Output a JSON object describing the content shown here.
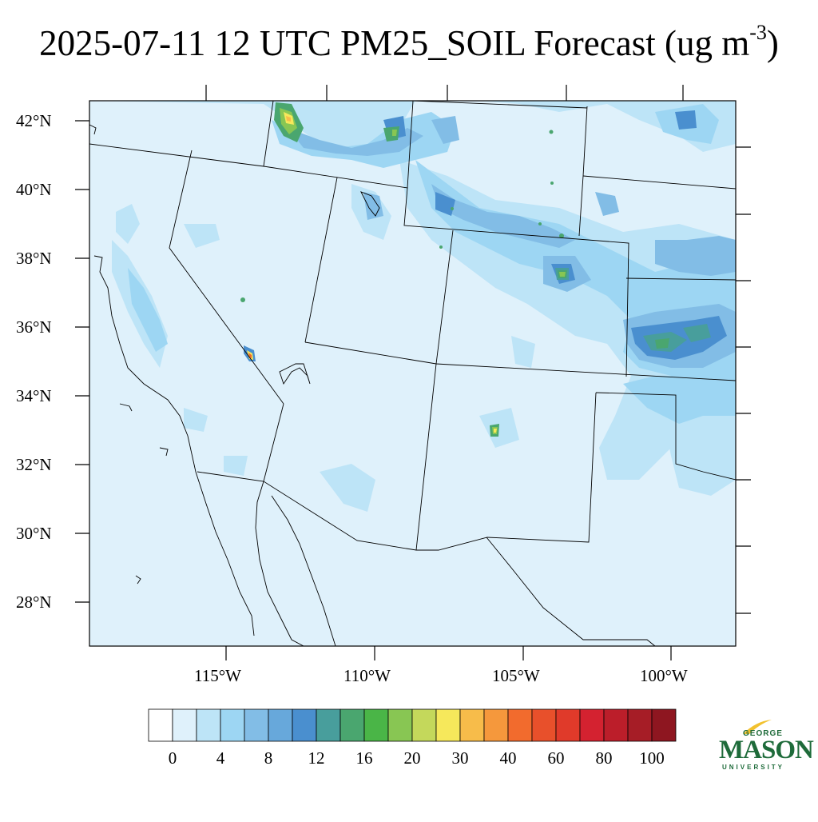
{
  "title": {
    "main": "2025-07-11 12 UTC PM25_SOIL Forecast (ug m",
    "superscript": "-3",
    "close": ")"
  },
  "map": {
    "lat_labels": [
      "42°N",
      "40°N",
      "38°N",
      "36°N",
      "34°N",
      "32°N",
      "30°N",
      "28°N"
    ],
    "lon_labels": [
      "115°W",
      "110°W",
      "105°W",
      "100°W"
    ],
    "background_color": "#dff1fb",
    "hotspots": [
      {
        "region": "southern Idaho",
        "level_range": "16-30"
      },
      {
        "region": "southern Nevada",
        "level_range": "12-40"
      },
      {
        "region": "southern Colorado",
        "level_range": "12-30"
      },
      {
        "region": "southern New Mexico",
        "level_range": "12-30"
      },
      {
        "region": "western Kansas / Oklahoma panhandle",
        "level_range": "8-16"
      }
    ]
  },
  "colorbar": {
    "labels": [
      "0",
      "4",
      "8",
      "12",
      "16",
      "20",
      "30",
      "40",
      "60",
      "80",
      "100"
    ],
    "colors": [
      "#ffffff",
      "#dff1fb",
      "#bde4f7",
      "#9dd6f3",
      "#82bde6",
      "#67a8db",
      "#4a8fcf",
      "#489e9c",
      "#4aa66f",
      "#4ab547",
      "#88c653",
      "#c4d85b",
      "#f6e85b",
      "#f7bc4a",
      "#f5983c",
      "#f26b2d",
      "#e8502b",
      "#e03a2a",
      "#d42230",
      "#bc1e2a",
      "#a61d26",
      "#8e1620"
    ]
  },
  "logo": {
    "top": "GEORGE",
    "main": "MASON",
    "bottom": "UNIVERSITY"
  }
}
